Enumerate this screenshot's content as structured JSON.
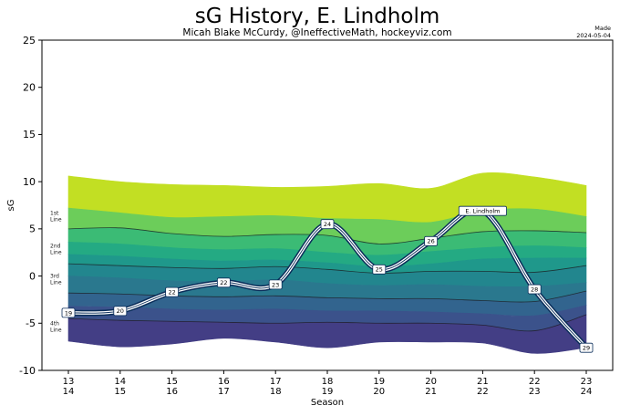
{
  "chart_data": {
    "type": "line",
    "title": "sG History, E. Lindholm",
    "subtitle": "Micah Blake McCurdy, @IneffectiveMath, hockeyviz.com",
    "made_label": "Made",
    "made_date": "2024-05-04",
    "xlabel": "Season",
    "ylabel": "sG",
    "ylim": [
      -10,
      25
    ],
    "yticks": [
      -10,
      -5,
      0,
      5,
      10,
      15,
      20,
      25
    ],
    "seasons": [
      {
        "top": "13",
        "bottom": "14"
      },
      {
        "top": "14",
        "bottom": "15"
      },
      {
        "top": "15",
        "bottom": "16"
      },
      {
        "top": "16",
        "bottom": "17"
      },
      {
        "top": "17",
        "bottom": "18"
      },
      {
        "top": "18",
        "bottom": "19"
      },
      {
        "top": "19",
        "bottom": "20"
      },
      {
        "top": "20",
        "bottom": "21"
      },
      {
        "top": "21",
        "bottom": "22"
      },
      {
        "top": "22",
        "bottom": "23"
      },
      {
        "top": "23",
        "bottom": "24"
      }
    ],
    "line_labels": [
      {
        "label": "1st\nLine",
        "y": 6.3
      },
      {
        "label": "2nd\nLine",
        "y": 2.8
      },
      {
        "label": "3rd\nLine",
        "y": -0.4
      },
      {
        "label": "4th\nLine",
        "y": -5.4
      }
    ],
    "bands": [
      [
        10.6,
        10.0,
        9.7,
        9.6,
        9.4,
        9.5,
        9.8,
        9.3,
        10.9,
        10.5,
        9.6
      ],
      [
        7.2,
        6.7,
        6.2,
        6.3,
        6.4,
        6.1,
        6.0,
        5.7,
        6.9,
        7.1,
        6.3
      ],
      [
        5.0,
        5.1,
        4.5,
        4.2,
        4.4,
        4.3,
        3.4,
        4.0,
        4.7,
        4.8,
        4.6
      ],
      [
        3.6,
        3.4,
        3.0,
        2.8,
        2.9,
        2.5,
        2.2,
        2.6,
        3.0,
        3.2,
        3.0
      ],
      [
        2.3,
        2.1,
        1.8,
        1.6,
        1.7,
        1.4,
        1.0,
        1.3,
        1.8,
        1.9,
        1.9
      ],
      [
        1.3,
        1.1,
        0.9,
        0.8,
        1.0,
        0.7,
        0.3,
        0.5,
        0.5,
        0.4,
        1.1
      ],
      [
        0.0,
        -0.2,
        -0.5,
        -0.6,
        -0.4,
        -0.8,
        -1.0,
        -0.9,
        -1.1,
        -1.1,
        -0.7
      ],
      [
        -1.8,
        -1.9,
        -2.1,
        -2.2,
        -2.1,
        -2.3,
        -2.4,
        -2.4,
        -2.6,
        -2.7,
        -1.6
      ],
      [
        -3.2,
        -3.3,
        -3.5,
        -3.6,
        -3.5,
        -3.7,
        -3.7,
        -3.8,
        -4.0,
        -4.2,
        -3.1
      ],
      [
        -4.5,
        -4.7,
        -4.8,
        -4.9,
        -5.0,
        -4.9,
        -5.0,
        -5.0,
        -5.2,
        -5.8,
        -4.1
      ],
      [
        -6.9,
        -7.5,
        -7.2,
        -6.6,
        -7.0,
        -7.6,
        -7.0,
        -7.0,
        -7.1,
        -8.2,
        -7.6
      ]
    ],
    "band_colors": [
      "#c2df23",
      "#6ccd5a",
      "#3bbb75",
      "#24aa83",
      "#1f988b",
      "#22868e",
      "#2a788e",
      "#32648e",
      "#3b528b",
      "#433e85",
      "#472d7b"
    ],
    "divider_lines": [
      2,
      5,
      7,
      9
    ],
    "series": [
      {
        "name": "E. Lindholm",
        "values": [
          -3.9,
          -3.7,
          -1.7,
          -0.7,
          -0.9,
          5.5,
          0.7,
          3.7,
          6.9,
          -1.4,
          -7.6
        ],
        "point_labels": [
          "19",
          "20",
          "22",
          "22",
          "23",
          "24",
          "25",
          "26",
          "",
          "28",
          "29"
        ]
      }
    ]
  }
}
